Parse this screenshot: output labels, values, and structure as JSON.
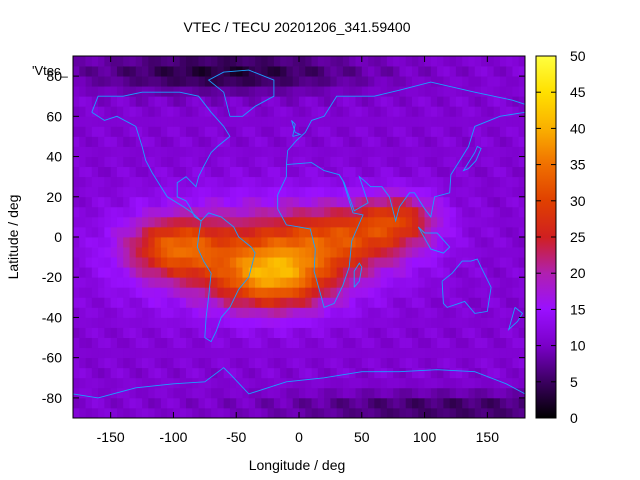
{
  "chart_data": {
    "type": "heatmap",
    "title": "VTEC / TECU 20201206_341.59400",
    "xlabel": "Longitude / deg",
    "ylabel": "Latitude / deg",
    "xlim": [
      -180,
      180
    ],
    "ylim": [
      -90,
      90
    ],
    "xticks": [
      -150,
      -100,
      -50,
      0,
      50,
      100,
      150
    ],
    "yticks": [
      -80,
      -60,
      -40,
      -20,
      0,
      20,
      40,
      60,
      80
    ],
    "colorbar": {
      "range": [
        0,
        50
      ],
      "ticks": [
        0,
        5,
        10,
        15,
        20,
        25,
        30,
        35,
        40,
        45,
        50
      ],
      "palette": [
        "#000000",
        "#3b0060",
        "#7a00c8",
        "#9a10ff",
        "#b020b0",
        "#d02020",
        "#e04000",
        "#f07000",
        "#fab000",
        "#ffe000",
        "#ffff40"
      ]
    },
    "legend_key": "'Vtec_",
    "legend_position": "top-left",
    "grid": false,
    "cell_size_deg": 5,
    "background_tec": 11,
    "features": [
      {
        "name": "equatorial-anomaly-core",
        "lon": -20,
        "lat": -20,
        "tec": 45
      },
      {
        "name": "south-america-peak",
        "lon": -100,
        "lat": -5,
        "tec": 40
      },
      {
        "name": "africa-band",
        "lon": 40,
        "lat": 0,
        "tec": 30
      },
      {
        "name": "arabian-sea-band",
        "lon": 80,
        "lat": 10,
        "tec": 28
      },
      {
        "name": "north-polar-trough",
        "lon": -60,
        "lat": 82,
        "tec": 2
      },
      {
        "name": "south-polar-trough",
        "lon": 120,
        "lat": -85,
        "tec": 4
      }
    ],
    "overlay": "coastlines"
  }
}
